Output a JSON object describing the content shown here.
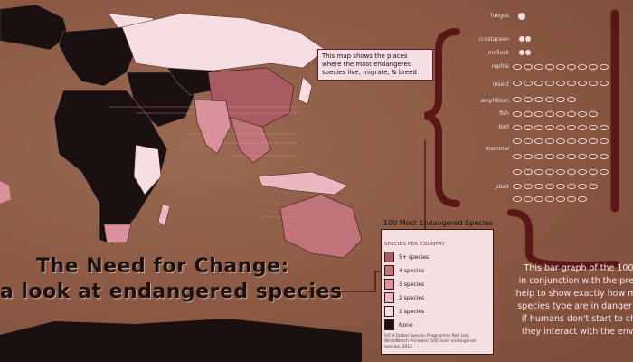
{
  "title": {
    "line1": "The Need for Change:",
    "line2": "a look at endangered species"
  },
  "callout": "This map shows the places where the most endangered species live, migrate, & breed",
  "legend": {
    "title": "100 Most Endangered Species",
    "subtitle": "SPECIES PER COUNTRY",
    "items": [
      {
        "label": "5+ species",
        "color": "#a85b63"
      },
      {
        "label": "4 species",
        "color": "#c0737b"
      },
      {
        "label": "3 species",
        "color": "#d9929b"
      },
      {
        "label": "2 species",
        "color": "#e9b8c0"
      },
      {
        "label": "1 species",
        "color": "#f6dde2"
      },
      {
        "label": "None",
        "color": "#1a1010"
      }
    ],
    "source": "IUCN Global Species Programme Red List, WorldWatch Priceless: 100 most endangered species, 2012"
  },
  "categories": [
    "fungus",
    "crustacean",
    "mollusk",
    "reptile",
    "insect",
    "amphibian",
    "fish",
    "bird",
    "mammal",
    "plant"
  ],
  "paragraph": {
    "line1": "This bar graph of the 100",
    "line2": "in conjunction with the prev",
    "line3": "help to show exactly how ma",
    "line4": "species type are in danger o",
    "line5": "if humans don't start to ch",
    "line6": "they interact with the envi"
  },
  "colors": {
    "background": "#8b5a45",
    "accent": "#5b1616",
    "land_none": "#1a1010"
  }
}
